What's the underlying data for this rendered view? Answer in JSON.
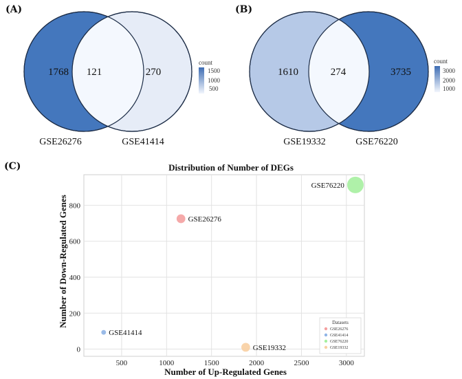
{
  "panels": {
    "a": "(A)",
    "b": "(B)",
    "c": "(C)"
  },
  "chart_data": [
    {
      "type": "venn",
      "panel": "(A)",
      "sets": [
        "GSE26276",
        "GSE41414"
      ],
      "counts": {
        "left_only": 1768,
        "overlap": 121,
        "right_only": 270
      },
      "legend": {
        "title": "count",
        "ticks": [
          1500,
          1000,
          500
        ]
      }
    },
    {
      "type": "venn",
      "panel": "(B)",
      "sets": [
        "GSE19332",
        "GSE76220"
      ],
      "counts": {
        "left_only": 1610,
        "overlap": 274,
        "right_only": 3735
      },
      "legend": {
        "title": "count",
        "ticks": [
          3000,
          2000,
          1000
        ]
      }
    },
    {
      "type": "scatter",
      "panel": "(C)",
      "title": "Distribution of Number of DEGs",
      "xlabel": "Number of Up-Regulated Genes",
      "ylabel": "Number of Down-Regulated Genes",
      "xlim": [
        80,
        3200
      ],
      "ylim": [
        -40,
        970
      ],
      "xticks": [
        500,
        1000,
        1500,
        2000,
        2500,
        3000
      ],
      "yticks": [
        0,
        200,
        400,
        600,
        800
      ],
      "grid": true,
      "legend": {
        "title": "Datasets",
        "placement": "bottom-right"
      },
      "points": [
        {
          "name": "GSE26276",
          "x": 1160,
          "y": 725,
          "color": "#f4a0a0"
        },
        {
          "name": "GSE41414",
          "x": 300,
          "y": 93,
          "color": "#8fb4e6"
        },
        {
          "name": "GSE76220",
          "x": 3100,
          "y": 913,
          "color": "#a6f0a0"
        },
        {
          "name": "GSE19332",
          "x": 1880,
          "y": 10,
          "color": "#f8cfa2"
        }
      ]
    }
  ]
}
